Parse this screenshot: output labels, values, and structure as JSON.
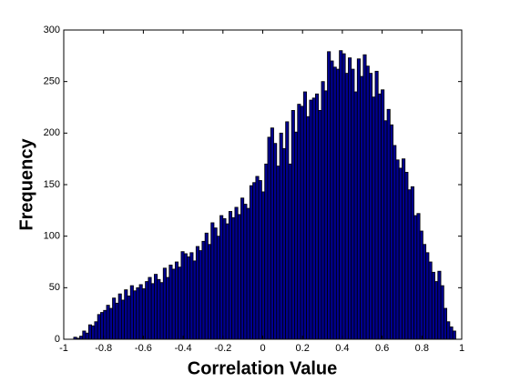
{
  "chart_data": {
    "type": "histogram",
    "xlabel": "Correlation Value",
    "ylabel": "Frequency",
    "bins": [
      -0.95,
      -0.935,
      -0.92,
      -0.905,
      -0.89,
      -0.875,
      -0.86,
      -0.845,
      -0.83,
      -0.815,
      -0.8,
      -0.785,
      -0.77,
      -0.755,
      -0.74,
      -0.725,
      -0.71,
      -0.695,
      -0.68,
      -0.665,
      -0.65,
      -0.635,
      -0.62,
      -0.605,
      -0.59,
      -0.575,
      -0.56,
      -0.545,
      -0.53,
      -0.515,
      -0.5,
      -0.485,
      -0.47,
      -0.455,
      -0.44,
      -0.425,
      -0.41,
      -0.395,
      -0.38,
      -0.365,
      -0.35,
      -0.335,
      -0.32,
      -0.305,
      -0.29,
      -0.275,
      -0.26,
      -0.245,
      -0.23,
      -0.215,
      -0.2,
      -0.185,
      -0.17,
      -0.155,
      -0.14,
      -0.125,
      -0.11,
      -0.095,
      -0.08,
      -0.065,
      -0.05,
      -0.035,
      -0.02,
      -0.005,
      0.01,
      0.025,
      0.04,
      0.055,
      0.07,
      0.085,
      0.1,
      0.115,
      0.13,
      0.145,
      0.16,
      0.175,
      0.19,
      0.205,
      0.22,
      0.235,
      0.25,
      0.265,
      0.28,
      0.295,
      0.31,
      0.325,
      0.34,
      0.355,
      0.37,
      0.385,
      0.4,
      0.415,
      0.43,
      0.445,
      0.46,
      0.475,
      0.49,
      0.505,
      0.52,
      0.535,
      0.55,
      0.565,
      0.58,
      0.595,
      0.61,
      0.625,
      0.64,
      0.655,
      0.67,
      0.685,
      0.7,
      0.715,
      0.73,
      0.745,
      0.76,
      0.775,
      0.79,
      0.805,
      0.82,
      0.835,
      0.85,
      0.865,
      0.88,
      0.895,
      0.91,
      0.925,
      0.94,
      0.955,
      0.97
    ],
    "values": [
      2,
      1,
      3,
      8,
      6,
      14,
      13,
      17,
      24,
      26,
      28,
      33,
      30,
      40,
      35,
      44,
      38,
      48,
      42,
      52,
      47,
      50,
      53,
      49,
      56,
      60,
      54,
      63,
      58,
      55,
      69,
      60,
      72,
      68,
      75,
      70,
      85,
      83,
      80,
      84,
      76,
      90,
      86,
      95,
      103,
      92,
      113,
      108,
      100,
      120,
      117,
      112,
      124,
      118,
      128,
      121,
      137,
      131,
      127,
      149,
      152,
      158,
      154,
      143,
      170,
      196,
      205,
      190,
      168,
      200,
      185,
      211,
      170,
      222,
      201,
      228,
      226,
      240,
      216,
      232,
      234,
      238,
      222,
      250,
      241,
      279,
      270,
      264,
      262,
      280,
      277,
      258,
      273,
      262,
      240,
      272,
      255,
      276,
      265,
      258,
      235,
      260,
      238,
      242,
      212,
      223,
      208,
      188,
      174,
      166,
      175,
      162,
      145,
      148,
      120,
      122,
      105,
      92,
      84,
      75,
      65,
      56,
      66,
      52,
      30,
      17,
      12,
      8
    ],
    "color": "#00008f",
    "edgecolor": "#000000",
    "xlim": [
      -1,
      1
    ],
    "xticks": [
      -1,
      -0.8,
      -0.6,
      -0.4,
      -0.2,
      0,
      0.2,
      0.4,
      0.6,
      0.8,
      1
    ],
    "ylim": [
      0,
      300
    ],
    "yticks": [
      0,
      50,
      100,
      150,
      200,
      250,
      300
    ]
  }
}
